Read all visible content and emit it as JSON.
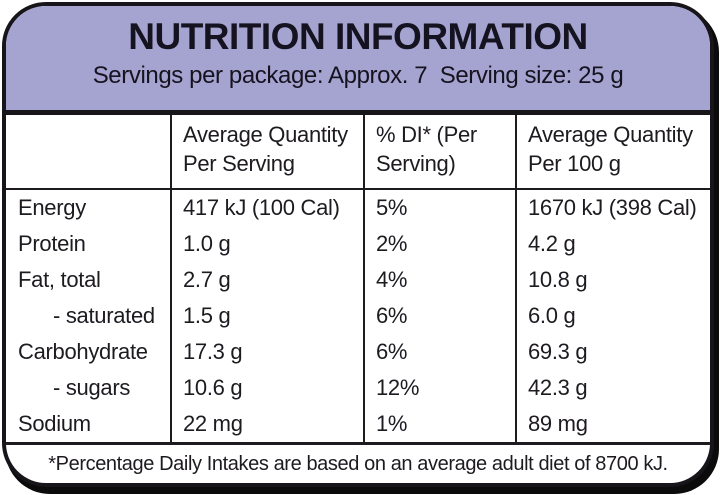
{
  "panel": {
    "title": "NUTRITION INFORMATION",
    "servings_line": "Servings per package: Approx. 7  Serving size: 25 g",
    "footnote": "*Percentage Daily Intakes are based on an average adult diet of 8700 kJ."
  },
  "table": {
    "columns": {
      "nutrient": "",
      "per_serving": "Average Quantity\nPer Serving",
      "di": "% DI* (Per\nServing)",
      "per_100g": "Average Quantity\nPer 100 g"
    },
    "rows": [
      {
        "nutrient": "Energy",
        "per_serving": "417 kJ (100 Cal)",
        "di": "5%",
        "per_100g": "1670 kJ (398 Cal)"
      },
      {
        "nutrient": "Protein",
        "per_serving": "1.0 g",
        "di": "2%",
        "per_100g": "4.2 g"
      },
      {
        "nutrient": "Fat, total",
        "per_serving": "2.7 g",
        "di": "4%",
        "per_100g": "10.8 g"
      },
      {
        "nutrient": "- saturated",
        "per_serving": "1.5 g",
        "di": "6%",
        "per_100g": "6.0 g"
      },
      {
        "nutrient": "Carbohydrate",
        "per_serving": "17.3 g",
        "di": "6%",
        "per_100g": "69.3 g"
      },
      {
        "nutrient": "- sugars",
        "per_serving": "10.6 g",
        "di": "12%",
        "per_100g": "42.3 g"
      },
      {
        "nutrient": "Sodium",
        "per_serving": "22 mg",
        "di": "1%",
        "per_100g": "89 mg"
      }
    ]
  },
  "colors": {
    "header_bg": "#a5a3d0",
    "border": "#17141a",
    "text": "#1d1a20",
    "table_bg": "#ffffff"
  }
}
